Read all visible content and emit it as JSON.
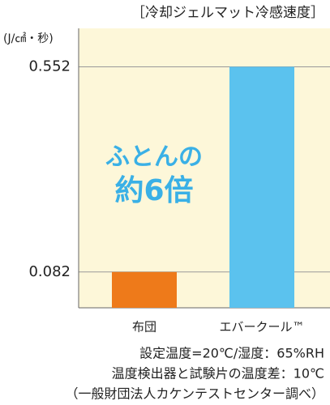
{
  "chart_data": {
    "type": "bar",
    "title": "［冷却ジェルマット冷感速度］",
    "y_unit": "(J/㎠・秒)",
    "categories": [
      "布団",
      "エバークール™"
    ],
    "values": [
      0.082,
      0.552
    ],
    "colors": [
      "#ee7a1a",
      "#5bc2ee"
    ],
    "ylim": [
      0,
      0.64
    ],
    "yticks": [
      0.082,
      0.552
    ],
    "grid": true,
    "annotation": [
      "ふとんの",
      "約6倍"
    ],
    "notes": [
      "設定温度=20℃/湿度：65%RH",
      "温度検出器と試験片の温度差：10℃",
      "（一般財団法人カケンテストセンター調べ）"
    ]
  }
}
